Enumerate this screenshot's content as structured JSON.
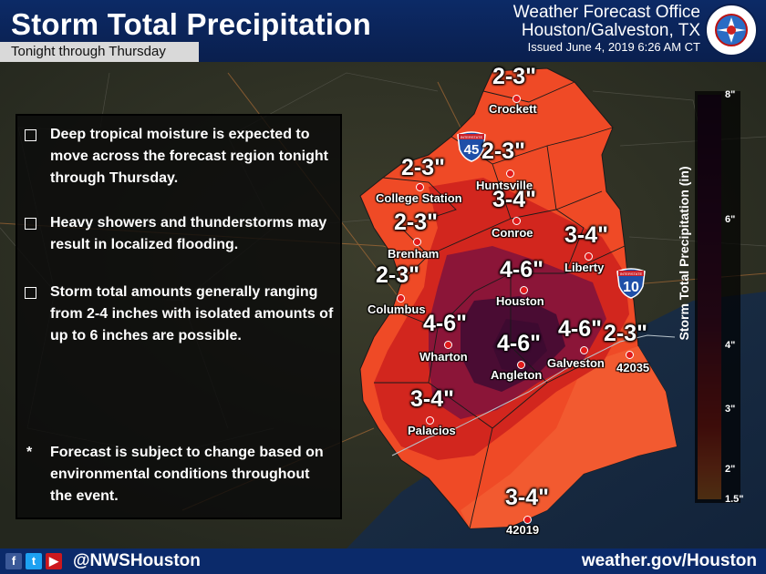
{
  "header": {
    "title": "Storm Total Precipitation",
    "subtitle": "Tonight through Thursday",
    "office_line1": "Weather Forecast Office",
    "office_line2": "Houston/Galveston, TX",
    "issued": "Issued June 4, 2019 6:26 AM CT",
    "seal_text": "NATIONAL WEATHER SERVICE"
  },
  "info": {
    "bullets": [
      "Deep tropical moisture is expected to move across the forecast region tonight through Thursday.",
      "Heavy showers and thunderstorms may result in localized flooding.",
      "Storm total amounts generally ranging from 2-4 inches with isolated amounts of up to 6 inches are possible."
    ],
    "note_mark": "*",
    "note": "Forecast is subject to change based on environmental conditions throughout the event."
  },
  "labels": {
    "crockett_val": "2-3\"",
    "crockett": "Crockett",
    "huntsville_val": "2-3\"",
    "huntsville": "Huntsville",
    "college_val": "2-3\"",
    "college": "College Station",
    "conroe_val": "3-4\"",
    "conroe": "Conroe",
    "brenham_val": "2-3\"",
    "brenham": "Brenham",
    "liberty_val": "3-4\"",
    "liberty": "Liberty",
    "houston_val": "4-6\"",
    "houston": "Houston",
    "columbus_val": "2-3\"",
    "columbus": "Columbus",
    "wharton_val": "4-6\"",
    "wharton": "Wharton",
    "angleton_val": "4-6\"",
    "angleton": "Angleton",
    "galveston_val": "4-6\"",
    "galveston": "Galveston",
    "buoy42035_val": "2-3\"",
    "buoy42035": "42035",
    "palacios_val": "3-4\"",
    "palacios": "Palacios",
    "buoy42019_val": "3-4\"",
    "buoy42019": "42019"
  },
  "shields": {
    "i45": "45",
    "i10": "10",
    "interstate": "INTERSTATE"
  },
  "legend": {
    "title": "Storm Total Precipitation (in)",
    "ticks": [
      "8\"",
      "6\"",
      "4\"",
      "3\"",
      "2\"",
      "1.5\""
    ],
    "colors": [
      "#2b0a2e",
      "#4a0f3d",
      "#6b1540",
      "#a3202e",
      "#cc2a23",
      "#ea3d22",
      "#fa6433",
      "#ff9a3c"
    ]
  },
  "footer": {
    "handle": "@NWSHouston",
    "site": "weather.gov/Houston",
    "icons": [
      "facebook-icon",
      "twitter-icon",
      "youtube-icon"
    ]
  },
  "colors": {
    "header_bg": "#0c2a66",
    "amount_2_3": "#ef4a26",
    "amount_3_4": "#d2261e",
    "amount_4_6": "#6b1040",
    "amount_peak": "#3d0a30"
  }
}
